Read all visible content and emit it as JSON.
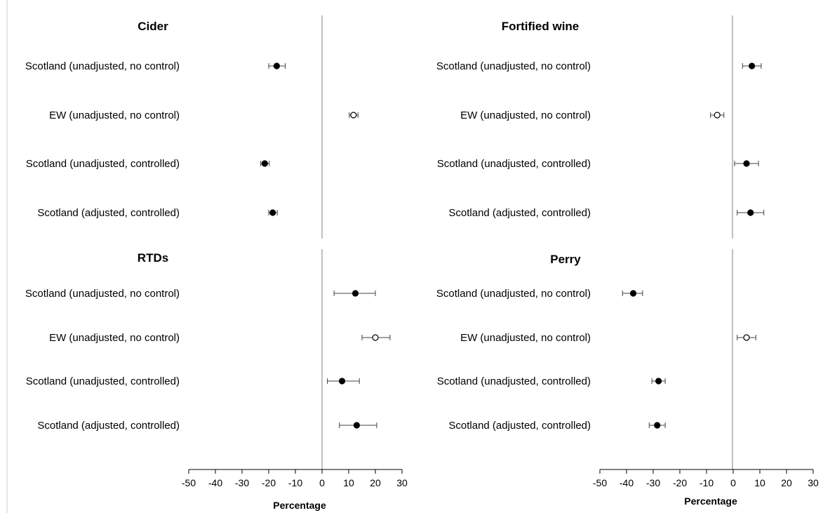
{
  "chart_data": [
    {
      "type": "forest",
      "title": "Cider",
      "categories": [
        "Scotland (unadjusted, no control)",
        "EW (unadjusted, no control)",
        "Scotland (unadjusted, controlled)",
        "Scotland (adjusted, controlled)"
      ],
      "estimates": [
        -17.0,
        11.8,
        -21.5,
        -18.5
      ],
      "ci_low": [
        -20.0,
        10.2,
        -23.0,
        -20.0
      ],
      "ci_high": [
        -13.8,
        13.5,
        -19.8,
        -16.8
      ],
      "markers": [
        "filled",
        "open",
        "filled",
        "filled"
      ],
      "xlim": [
        -50,
        30
      ],
      "xticks": [
        "-50",
        "-40",
        "-30",
        "-20",
        "-10",
        "0",
        "10",
        "20",
        "30"
      ],
      "xlabel": "",
      "show_axis": false
    },
    {
      "type": "forest",
      "title": "Fortified wine",
      "categories": [
        "Scotland (unadjusted, no control)",
        "EW (unadjusted, no control)",
        "Scotland (unadjusted, controlled)",
        "Scotland (adjusted, controlled)"
      ],
      "estimates": [
        7.0,
        -6.0,
        5.0,
        6.5
      ],
      "ci_low": [
        3.5,
        -8.5,
        0.5,
        1.5
      ],
      "ci_high": [
        10.5,
        -3.5,
        9.5,
        11.5
      ],
      "markers": [
        "filled",
        "open",
        "filled",
        "filled"
      ],
      "xlim": [
        -50,
        30
      ],
      "xticks": [
        "-50",
        "-40",
        "-30",
        "-20",
        "-10",
        "0",
        "10",
        "20",
        "30"
      ],
      "xlabel": "",
      "show_axis": false
    },
    {
      "type": "forest",
      "title": "RTDs",
      "categories": [
        "Scotland (unadjusted, no control)",
        "EW (unadjusted, no control)",
        "Scotland (unadjusted, controlled)",
        "Scotland (adjusted, controlled)"
      ],
      "estimates": [
        12.5,
        20.0,
        7.5,
        13.0
      ],
      "ci_low": [
        4.5,
        15.0,
        2.0,
        6.5
      ],
      "ci_high": [
        20.0,
        25.5,
        14.0,
        20.5
      ],
      "markers": [
        "filled",
        "open",
        "filled",
        "filled"
      ],
      "xlim": [
        -50,
        30
      ],
      "xticks": [
        "-50",
        "-40",
        "-30",
        "-20",
        "-10",
        "0",
        "10",
        "20",
        "30"
      ],
      "xlabel": "Percentage",
      "show_axis": true
    },
    {
      "type": "forest",
      "title": "Perry",
      "categories": [
        "Scotland (unadjusted, no control)",
        "EW (unadjusted, no control)",
        "Scotland (unadjusted, controlled)",
        "Scotland (adjusted, controlled)"
      ],
      "estimates": [
        -37.5,
        5.0,
        -28.0,
        -28.5
      ],
      "ci_low": [
        -41.5,
        1.5,
        -30.5,
        -31.5
      ],
      "ci_high": [
        -34.0,
        8.5,
        -25.5,
        -25.5
      ],
      "markers": [
        "filled",
        "open",
        "filled",
        "filled"
      ],
      "xlim": [
        -50,
        30
      ],
      "xticks": [
        "-50",
        "-40",
        "-30",
        "-20",
        "-10",
        "0",
        "10",
        "20",
        "30"
      ],
      "xlabel": "Percentage",
      "show_axis": true
    }
  ],
  "colors": {
    "marker": "#000000",
    "zero_line": "#808080",
    "whisker": "#404040",
    "frame": "#c8c8c8"
  }
}
